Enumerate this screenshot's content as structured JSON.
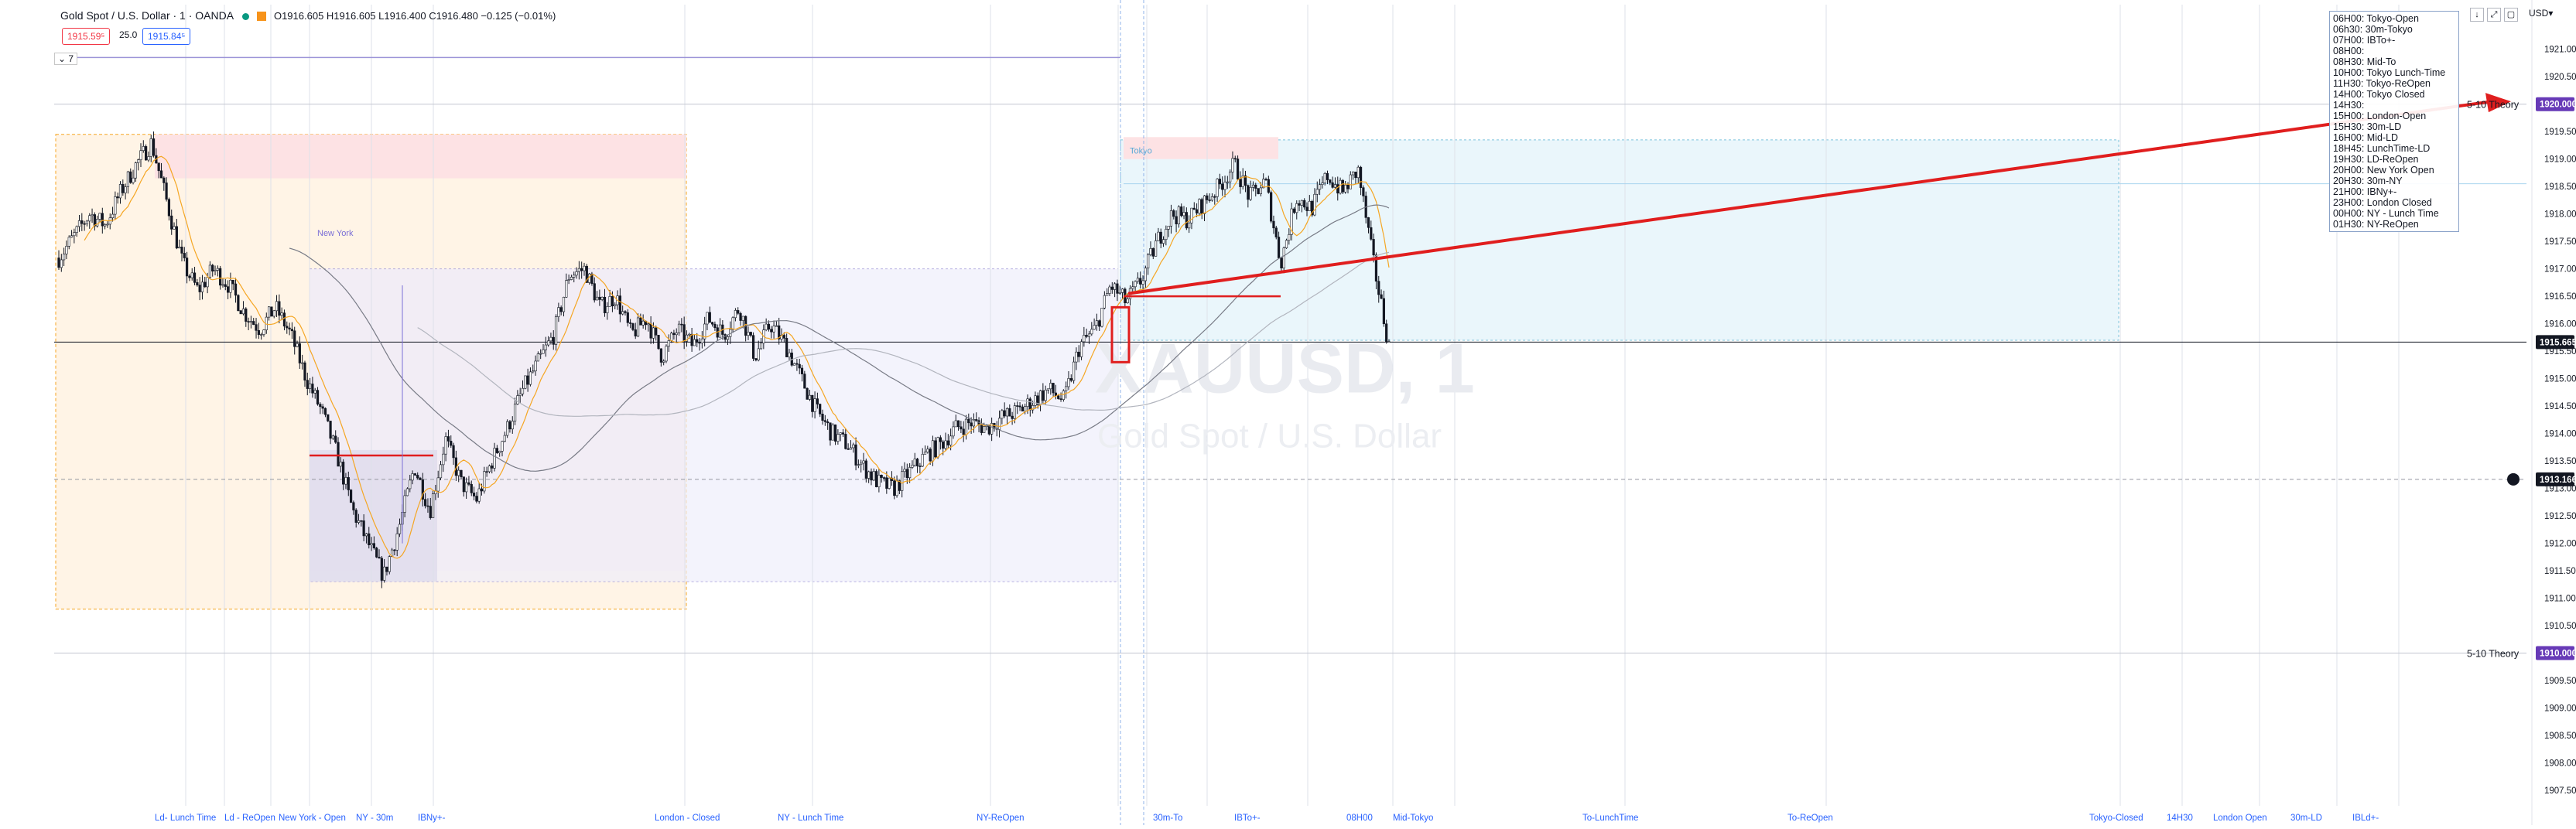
{
  "header": {
    "title": "Gold Spot / U.S. Dollar · 1 · OANDA",
    "ohlc": "O1916.605 H1916.605 L1916.400 C1916.480 −0.125 (−0.01%)",
    "sell_price": "1915.59⁵",
    "spread": "25.0",
    "buy_price": "1915.84⁵",
    "collapse_label": "7",
    "currency": "USD"
  },
  "toolbar": {
    "down_icon": "↓",
    "fullscreen_icon": "⤢",
    "square_icon": "▢"
  },
  "session_legend": [
    "06H00: Tokyo-Open",
    "06h30: 30m-Tokyo",
    "07H00: IBTo+-",
    "08H00:",
    "08H30: Mid-To",
    "10H00: Tokyo Lunch-Time",
    "11H30: Tokyo-ReOpen",
    "14H00: Tokyo Closed",
    "14H30:",
    "15H00: London-Open",
    "15H30: 30m-LD",
    "16H00: Mid-LD",
    "18H45: LunchTime-LD",
    "19H30: LD-ReOpen",
    "20H00: New York Open",
    "20H30: 30m-NY",
    "21H00: IBNy+-",
    "23H00: London Closed",
    "00H00: NY - Lunch Time",
    "01H30: NY-ReOpen"
  ],
  "chart_data": {
    "type": "candlestick",
    "symbol": "XAUUSD, 1",
    "watermark_symbol": "XAUUSD, 1",
    "watermark_name": "Gold Spot / U.S. Dollar",
    "ylim": [
      1907.5,
      1921.25
    ],
    "y_ticks": [
      1921.0,
      1920.5,
      1920.0,
      1919.5,
      1919.0,
      1918.5,
      1918.0,
      1917.5,
      1917.0,
      1916.5,
      1916.0,
      1915.5,
      1915.0,
      1914.5,
      1914.0,
      1913.5,
      1913.0,
      1912.5,
      1912.0,
      1911.5,
      1911.0,
      1910.5,
      1910.0,
      1909.5,
      1909.0,
      1908.5,
      1908.0,
      1907.5
    ],
    "last_price": "1915.665",
    "crosshair_price": "1913.166",
    "theory_upper": {
      "label": "5-10 Theory",
      "price": "1920.000"
    },
    "theory_lower": {
      "label": "5-10 Theory",
      "price": "1910.000"
    },
    "session_labels": [
      "Ld- Lunch Time",
      "Ld - ReOpen",
      "New York - Open",
      "NY - 30m",
      "IBNy+-",
      "London - Closed",
      "NY - Lunch Time",
      "NY-ReOpen",
      "30m-To",
      "IBTo+-",
      "08H00",
      "Mid-Tokyo",
      "To-LunchTime",
      "To-ReOpen",
      "Tokyo-Closed",
      "14H30",
      "London Open",
      "30m-LD",
      "IBLd+-"
    ],
    "zone_labels": {
      "new_york": "New York",
      "tokyo": "Tokyo"
    },
    "price_path": [
      1917.2,
      1917.6,
      1918.0,
      1917.8,
      1918.4,
      1918.9,
      1919.3,
      1918.2,
      1917.1,
      1916.6,
      1917.0,
      1916.7,
      1916.2,
      1915.9,
      1916.3,
      1915.8,
      1915.0,
      1914.4,
      1913.6,
      1912.6,
      1912.0,
      1911.4,
      1912.3,
      1913.4,
      1912.6,
      1913.9,
      1913.1,
      1912.8,
      1913.5,
      1914.1,
      1914.8,
      1915.3,
      1915.8,
      1916.9,
      1917.0,
      1916.3,
      1916.5,
      1915.8,
      1916.1,
      1915.4,
      1915.9,
      1915.6,
      1916.1,
      1915.8,
      1916.3,
      1915.4,
      1916.0,
      1915.6,
      1915.0,
      1914.4,
      1914.0,
      1913.8,
      1913.4,
      1913.1,
      1913.0,
      1913.3,
      1913.6,
      1913.8,
      1914.1,
      1914.2,
      1914.1,
      1914.3,
      1914.4,
      1914.6,
      1914.8,
      1914.6,
      1915.6,
      1915.9,
      1916.7,
      1916.4,
      1916.8,
      1917.5,
      1918.0,
      1917.9,
      1918.2,
      1918.5,
      1918.9,
      1918.3,
      1918.6,
      1917.1,
      1918.3,
      1918.1,
      1918.7,
      1918.4,
      1918.8,
      1917.1,
      1915.6
    ]
  }
}
